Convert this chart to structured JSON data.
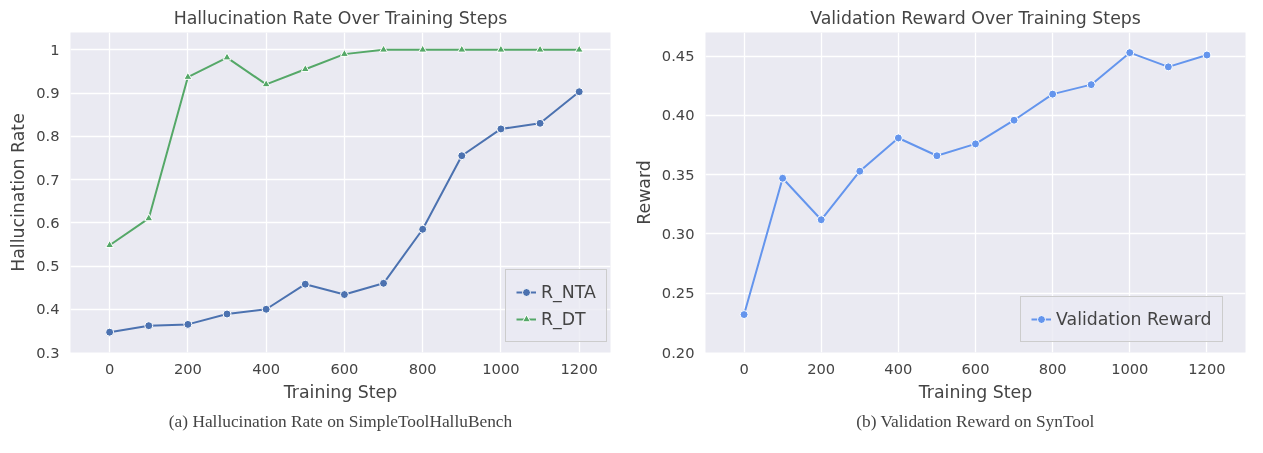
{
  "chart_data": [
    {
      "type": "line",
      "title": "Hallucination Rate Over Training Steps",
      "xlabel": "Training Step",
      "ylabel": "Hallucination Rate",
      "x": [
        0,
        100,
        200,
        300,
        400,
        500,
        600,
        700,
        800,
        900,
        1000,
        1100,
        1200
      ],
      "series": [
        {
          "name": "R_NTA",
          "color": "#4c72b0",
          "marker": "circle",
          "values": [
            0.347,
            0.362,
            0.365,
            0.389,
            0.4,
            0.458,
            0.434,
            0.46,
            0.585,
            0.755,
            0.817,
            0.83,
            0.903
          ]
        },
        {
          "name": "R_DT",
          "color": "#55a868",
          "marker": "triangle",
          "values": [
            0.548,
            0.61,
            0.937,
            0.982,
            0.92,
            0.955,
            0.99,
            1.0,
            1.0,
            1.0,
            1.0,
            1.0,
            1.0
          ]
        }
      ],
      "xlim": [
        -100,
        1280
      ],
      "ylim": [
        0.3,
        1.04
      ],
      "xticks": [
        0,
        200,
        400,
        600,
        800,
        1000,
        1200
      ],
      "yticks": [
        0.3,
        0.4,
        0.5,
        0.6,
        0.7,
        0.8,
        0.9,
        1.0
      ],
      "grid": true,
      "legend": "bottom right",
      "line_style": "solid",
      "annotations": [
        "(a) Hallucination Rate on SimpleToolHalluBench"
      ]
    },
    {
      "type": "line",
      "title": "Validation Reward Over Training Steps",
      "xlabel": "Training Step",
      "ylabel": "Reward",
      "x": [
        0,
        100,
        200,
        300,
        400,
        500,
        600,
        700,
        800,
        900,
        1000,
        1100,
        1200
      ],
      "series": [
        {
          "name": "Validation Reward",
          "color": "#6495ed",
          "marker": "circle",
          "values": [
            0.232,
            0.347,
            0.312,
            0.353,
            0.381,
            0.366,
            0.376,
            0.396,
            0.418,
            0.426,
            0.453,
            0.441,
            0.451
          ]
        }
      ],
      "xlim": [
        -100,
        1300
      ],
      "ylim": [
        0.2,
        0.47
      ],
      "xticks": [
        0,
        200,
        400,
        600,
        800,
        1000,
        1200
      ],
      "yticks": [
        {
          "value": 0.2,
          "label": "0.20"
        },
        {
          "value": 0.25,
          "label": "0.25"
        },
        {
          "value": 0.3,
          "label": "0.30"
        },
        {
          "value": 0.35,
          "label": "0.35"
        },
        {
          "value": 0.4,
          "label": "0.40"
        },
        {
          "value": 0.45,
          "label": "0.45"
        }
      ],
      "grid": true,
      "legend": "bottom right",
      "line_style": "solid",
      "annotations": [
        "(b) Validation Reward on SynTool"
      ]
    }
  ]
}
